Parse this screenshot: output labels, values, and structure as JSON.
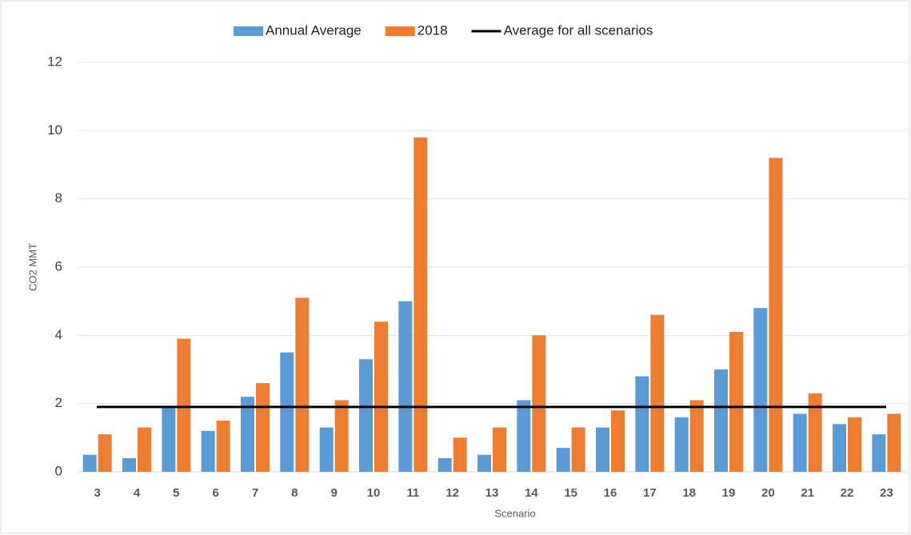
{
  "chart_data": {
    "type": "bar",
    "x_label": "Scenario",
    "y_label": "CO2 MMT",
    "categories": [
      "3",
      "4",
      "5",
      "6",
      "7",
      "8",
      "9",
      "10",
      "11",
      "12",
      "13",
      "14",
      "15",
      "16",
      "17",
      "18",
      "19",
      "20",
      "21",
      "22",
      "23"
    ],
    "series": [
      {
        "name": "Annual Average",
        "color": "#5b9bd5",
        "values": [
          0.5,
          0.4,
          1.9,
          1.2,
          2.2,
          3.5,
          1.3,
          3.3,
          5.0,
          0.4,
          0.5,
          2.1,
          0.7,
          1.3,
          2.8,
          1.6,
          3.0,
          4.8,
          1.7,
          1.4,
          1.1
        ]
      },
      {
        "name": "2018",
        "color": "#ed7d31",
        "values": [
          1.1,
          1.3,
          3.9,
          1.5,
          2.6,
          5.1,
          2.1,
          4.4,
          9.8,
          1.0,
          1.3,
          4.0,
          1.3,
          1.8,
          4.6,
          2.1,
          4.1,
          9.2,
          2.3,
          1.6,
          1.7
        ]
      }
    ],
    "reference_line": {
      "name": "Average for all scenarios",
      "value": 1.9,
      "color": "#000000"
    },
    "ylim": [
      0,
      12
    ],
    "yticks": [
      0,
      2,
      4,
      6,
      8,
      10,
      12
    ],
    "grid": true,
    "legend": "top"
  }
}
